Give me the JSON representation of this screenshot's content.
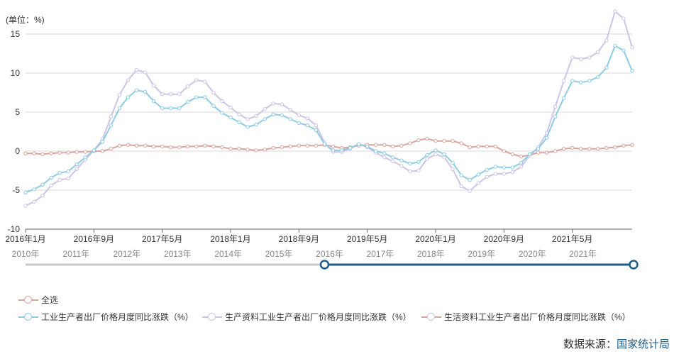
{
  "unit_label": "(单位：%)",
  "source": {
    "label": "数据来源：",
    "org": "国家统计局"
  },
  "colors": {
    "industrial": "#8fcbe3",
    "production": "#cdc4e6",
    "living": "#d9a59f",
    "slider_track": "#1f5d8a",
    "grid": "#d8d8d8"
  },
  "legend": {
    "select_all": "全选",
    "items": [
      {
        "key": "industrial",
        "label": "工业生产者出厂价格月度同比涨跌（%）"
      },
      {
        "key": "production",
        "label": "生产资料工业生产者出厂价格月度同比涨跌（%）"
      },
      {
        "key": "living",
        "label": "生活资料工业生产者出厂价格月度同比涨跌（%）"
      }
    ]
  },
  "timeline": {
    "years": [
      "2010年",
      "2011年",
      "2012年",
      "2013年",
      "2014年",
      "2015年",
      "2016年",
      "2017年",
      "2018年",
      "2019年",
      "2020年",
      "2021年"
    ],
    "range_start": "2016-01",
    "range_end": "2021-12"
  },
  "chart_data": {
    "type": "line",
    "ylim": [
      -10,
      15
    ],
    "yticks": [
      -10,
      -5,
      0,
      5,
      10,
      15
    ],
    "grid": true,
    "x_start": "2016-01",
    "x_end": "2021-12",
    "xtick_labels": [
      "2016年1月",
      "2016年9月",
      "2017年5月",
      "2018年1月",
      "2018年9月",
      "2019年5月",
      "2020年1月",
      "2020年9月",
      "2021年5月"
    ],
    "series": [
      {
        "key": "industrial",
        "name": "工业生产者出厂价格月度同比涨跌（%）",
        "values": [
          -5.3,
          -4.9,
          -4.3,
          -3.4,
          -2.8,
          -2.6,
          -1.7,
          -0.8,
          0.1,
          1.2,
          3.3,
          5.5,
          6.9,
          7.8,
          7.6,
          6.4,
          5.5,
          5.5,
          5.5,
          6.3,
          6.9,
          6.9,
          5.8,
          4.9,
          4.3,
          3.7,
          3.1,
          3.4,
          4.1,
          4.7,
          4.6,
          4.1,
          3.6,
          3.3,
          2.7,
          0.9,
          0.1,
          0.1,
          0.4,
          0.9,
          0.6,
          0.0,
          -0.3,
          -0.8,
          -1.2,
          -1.6,
          -1.4,
          -0.5,
          0.1,
          -0.4,
          -1.5,
          -3.1,
          -3.7,
          -3.0,
          -2.4,
          -2.0,
          -2.1,
          -2.1,
          -1.5,
          -0.4,
          0.3,
          1.7,
          4.4,
          6.8,
          9.0,
          8.8,
          9.0,
          9.5,
          10.7,
          13.5,
          12.9,
          10.3
        ]
      },
      {
        "key": "production",
        "name": "生产资料工业生产者出厂价格月度同比涨跌（%）",
        "values": [
          -7.0,
          -6.5,
          -5.7,
          -4.4,
          -3.7,
          -3.5,
          -2.3,
          -1.1,
          0.1,
          1.5,
          4.4,
          7.2,
          9.1,
          10.4,
          10.1,
          8.4,
          7.3,
          7.3,
          7.3,
          8.3,
          9.1,
          8.9,
          7.5,
          6.4,
          5.6,
          4.7,
          4.1,
          4.5,
          5.4,
          6.1,
          6.0,
          5.3,
          4.6,
          4.2,
          3.3,
          1.1,
          -0.1,
          -0.1,
          0.3,
          0.9,
          0.5,
          -0.2,
          -0.8,
          -1.3,
          -1.9,
          -2.6,
          -2.5,
          -1.0,
          -0.4,
          -0.8,
          -2.3,
          -4.5,
          -5.1,
          -4.1,
          -3.3,
          -2.9,
          -2.9,
          -2.7,
          -2.0,
          -0.6,
          0.5,
          2.3,
          5.7,
          9.0,
          12.0,
          11.8,
          12.0,
          12.7,
          14.2,
          17.9,
          17.0,
          13.3
        ]
      },
      {
        "key": "living",
        "name": "生活资料工业生产者出厂价格月度同比涨跌（%）",
        "values": [
          -0.3,
          -0.3,
          -0.4,
          -0.3,
          -0.2,
          -0.2,
          -0.1,
          -0.1,
          0.0,
          0.0,
          0.3,
          0.7,
          0.8,
          0.7,
          0.7,
          0.6,
          0.6,
          0.5,
          0.5,
          0.6,
          0.6,
          0.7,
          0.6,
          0.5,
          0.3,
          0.3,
          0.2,
          0.1,
          0.2,
          0.4,
          0.5,
          0.6,
          0.7,
          0.7,
          0.7,
          0.8,
          0.6,
          0.4,
          0.5,
          0.7,
          0.8,
          0.8,
          0.8,
          0.6,
          0.7,
          1.0,
          1.4,
          1.6,
          1.3,
          1.3,
          1.3,
          1.0,
          0.5,
          0.6,
          0.6,
          0.6,
          0.0,
          -0.4,
          -0.7,
          -0.5,
          -0.2,
          -0.2,
          0.0,
          0.3,
          0.4,
          0.3,
          0.3,
          0.3,
          0.4,
          0.5,
          0.7,
          0.8
        ]
      }
    ]
  }
}
